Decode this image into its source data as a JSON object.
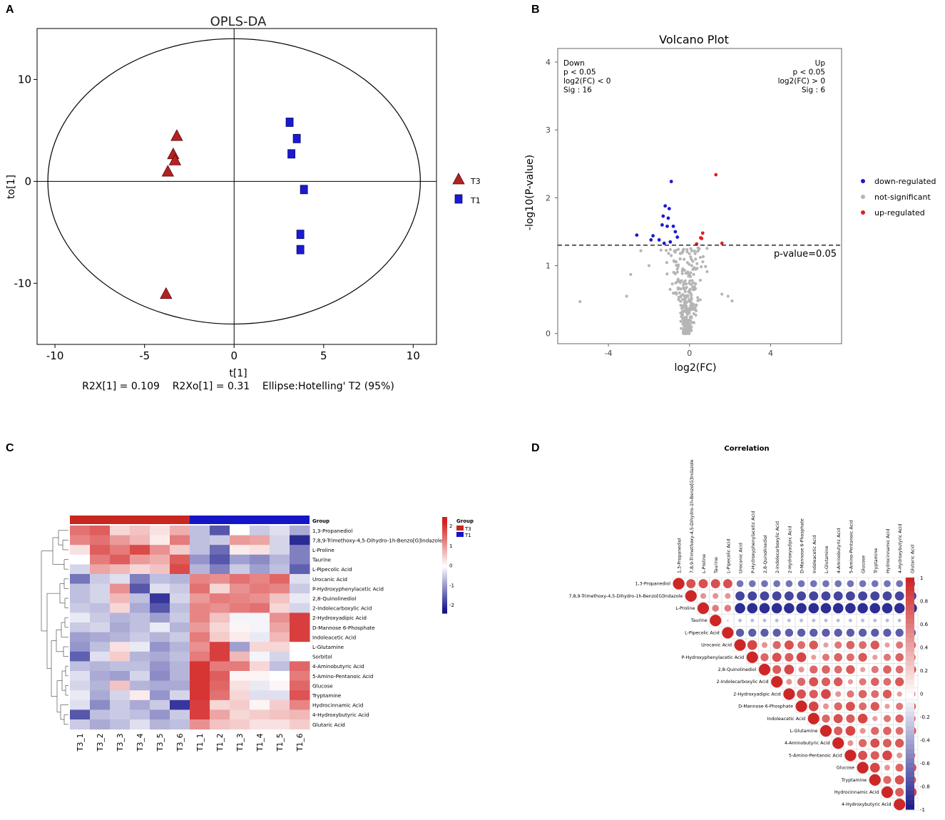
{
  "panels": {
    "A": "A",
    "B": "B",
    "C": "C",
    "D": "D"
  },
  "chart_data": [
    {
      "id": "A",
      "type": "scatter",
      "title": "OPLS-DA",
      "xlabel": "t[1]",
      "ylabel": "to[1]",
      "xlim": [
        -11,
        11.3
      ],
      "ylim": [
        -16,
        15
      ],
      "xticks": [
        -10,
        -5,
        0,
        5,
        10
      ],
      "yticks": [
        -10,
        0,
        10
      ],
      "footer": "R2X[1] = 0.109    R2Xo[1] = 0.31    Ellipse:Hotelling' T2 (95%)",
      "ellipse": {
        "rx": 10.4,
        "ry": 14.0
      },
      "colors": {
        "T3": "#b22222",
        "T1": "#1a1ad1"
      },
      "series": [
        {
          "name": "T3",
          "marker": "triangle",
          "x": [
            -3.2,
            -3.4,
            -3.3,
            -3.7,
            -3.8
          ],
          "y": [
            4.5,
            2.7,
            2.1,
            1.0,
            -11.0
          ]
        },
        {
          "name": "T1",
          "marker": "square",
          "x": [
            3.1,
            3.5,
            3.2,
            3.9,
            3.7,
            3.7
          ],
          "y": [
            5.8,
            4.2,
            2.7,
            -0.8,
            -5.2,
            -6.7
          ]
        }
      ],
      "legend": [
        "T3",
        "T1"
      ]
    },
    {
      "id": "B",
      "type": "scatter",
      "title": "Volcano Plot",
      "xlabel": "log2(FC)",
      "ylabel": "-log10(P-value)",
      "xlim": [
        -6.5,
        7.5
      ],
      "ylim": [
        -0.15,
        4.2
      ],
      "xticks": [
        -4,
        0,
        4
      ],
      "yticks": [
        0,
        1,
        2,
        3,
        4
      ],
      "threshold_y": 1.301,
      "threshold_label": "p-value=0.05",
      "annot_down": [
        "Down",
        "p < 0.05",
        "log2(FC) < 0",
        "Sig : 16"
      ],
      "annot_up": [
        "Up",
        "p < 0.05",
        "log2(FC) > 0",
        "Sig : 6"
      ],
      "legend": [
        {
          "label": "down-regulated",
          "color": "#1a1ad1"
        },
        {
          "label": "not-significant",
          "color": "#b5b5b5"
        },
        {
          "label": "up-regulated",
          "color": "#e0201c"
        }
      ],
      "down_points": [
        [
          -0.9,
          2.24
        ],
        [
          -1.2,
          1.88
        ],
        [
          -1.0,
          1.84
        ],
        [
          -1.3,
          1.73
        ],
        [
          -1.05,
          1.7
        ],
        [
          -1.35,
          1.6
        ],
        [
          -1.1,
          1.58
        ],
        [
          -0.8,
          1.58
        ],
        [
          -2.6,
          1.45
        ],
        [
          -1.8,
          1.44
        ],
        [
          -0.7,
          1.5
        ],
        [
          -0.6,
          1.42
        ],
        [
          -1.9,
          1.38
        ],
        [
          -1.5,
          1.38
        ],
        [
          -0.95,
          1.35
        ],
        [
          -1.25,
          1.33
        ]
      ],
      "up_points": [
        [
          1.3,
          2.34
        ],
        [
          0.65,
          1.48
        ],
        [
          0.55,
          1.41
        ],
        [
          0.6,
          1.4
        ],
        [
          1.6,
          1.33
        ],
        [
          0.35,
          1.32
        ]
      ]
    },
    {
      "id": "C",
      "type": "heatmap",
      "columns": [
        "T3_1",
        "T3_2",
        "T3_3",
        "T3_4",
        "T3_5",
        "T3_6",
        "T1_1",
        "T1_2",
        "T1_3",
        "T1_4",
        "T1_5",
        "T1_6"
      ],
      "group_label": "Group",
      "groups": [
        "T3",
        "T3",
        "T3",
        "T3",
        "T3",
        "T3",
        "T1",
        "T1",
        "T1",
        "T1",
        "T1",
        "T1"
      ],
      "group_colors": {
        "T3": "#c8261f",
        "T1": "#1515c8"
      },
      "legend_title": "Group",
      "legend_items": [
        "T3",
        "T1"
      ],
      "scale_ticks": [
        "2",
        "1",
        "0",
        "-1",
        "-2"
      ],
      "rows": [
        "1,3-Propanediol",
        "7,8,9-Trimethoxy-4,5-Dihydro-1h-Benzo[G]Indazole",
        "L-Proline",
        "Taurine",
        "L-Pipecolic Acid",
        "Urocanic Acid",
        "P-Hydroxyphenylacetic Acid",
        "2,8-Quinolinediol",
        "2-Indolecarboxylic Acid",
        "2-Hydroxyadipic Acid",
        "D-Mannose 6-Phosphate",
        "Indoleacetic Acid",
        "L-Glutamine",
        "Sorbitol",
        "4-Aminobutyric Acid",
        "5-Amino-Pentanoic Acid",
        "Glucose",
        "Tryptamine",
        "Hydrocinnamic Acid",
        "4-Hydroxybutyric Acid",
        "Glutaric Acid"
      ],
      "values": [
        [
          1.4,
          1.6,
          0.4,
          0.6,
          0.3,
          0.8,
          -0.6,
          -1.6,
          0.0,
          -0.5,
          -0.3,
          -0.8
        ],
        [
          1.2,
          1.4,
          1.0,
          0.7,
          0.2,
          1.3,
          -0.6,
          -0.5,
          1.0,
          0.9,
          -0.4,
          -2.0
        ],
        [
          0.3,
          1.6,
          1.3,
          1.8,
          1.1,
          0.5,
          -0.6,
          -1.4,
          0.2,
          0.3,
          -0.4,
          -1.2
        ],
        [
          0.0,
          1.3,
          1.6,
          1.0,
          0.8,
          1.6,
          -1.0,
          -1.6,
          -0.9,
          -1.1,
          -0.7,
          -1.2
        ],
        [
          -0.4,
          0.9,
          0.7,
          0.4,
          0.6,
          1.8,
          -0.7,
          -1.2,
          -0.5,
          -0.9,
          -0.6,
          -1.5
        ],
        [
          -1.3,
          -0.5,
          -0.3,
          -1.2,
          -0.6,
          -0.7,
          1.2,
          1.1,
          1.4,
          1.2,
          1.5,
          -0.3
        ],
        [
          -0.6,
          -0.4,
          1.1,
          -1.6,
          -0.3,
          -0.5,
          1.4,
          0.4,
          1.1,
          1.3,
          1.2,
          -0.5
        ],
        [
          -0.6,
          -0.4,
          0.7,
          -0.6,
          -1.9,
          -0.4,
          1.0,
          1.3,
          1.2,
          1.1,
          0.6,
          -0.2
        ],
        [
          -0.5,
          -0.6,
          0.4,
          -0.8,
          -1.6,
          -0.6,
          1.2,
          1.1,
          1.3,
          1.4,
          0.4,
          -0.4
        ],
        [
          -0.2,
          -0.5,
          -0.7,
          -0.6,
          -0.9,
          -0.5,
          1.2,
          0.6,
          -0.1,
          -0.1,
          1.1,
          1.9
        ],
        [
          -0.5,
          -0.4,
          -0.8,
          -0.6,
          -0.2,
          -0.7,
          1.0,
          0.4,
          0.1,
          -0.1,
          0.9,
          1.9
        ],
        [
          -0.9,
          -0.8,
          -0.7,
          -0.5,
          -0.7,
          -0.5,
          1.3,
          0.5,
          0.2,
          -0.2,
          0.7,
          1.9
        ],
        [
          -1.0,
          -0.6,
          0.3,
          -0.2,
          -1.0,
          -0.7,
          1.1,
          1.9,
          -0.9,
          0.4,
          0.4,
          0.0
        ],
        [
          -1.5,
          -0.3,
          0.5,
          -0.7,
          -0.8,
          -0.6,
          1.3,
          1.9,
          0.7,
          -0.1,
          -0.4,
          0.0
        ],
        [
          -0.6,
          -0.7,
          -0.6,
          -0.6,
          -1.0,
          -0.7,
          2.0,
          1.3,
          1.3,
          0.4,
          -0.6,
          1.5
        ],
        [
          -0.3,
          -0.8,
          -0.9,
          -0.4,
          -1.1,
          -0.7,
          2.0,
          1.6,
          0.1,
          0.1,
          0.0,
          1.3
        ],
        [
          -0.4,
          -0.7,
          0.6,
          -0.7,
          -0.8,
          -0.8,
          2.0,
          1.5,
          0.3,
          -0.2,
          0.1,
          1.5
        ],
        [
          -0.2,
          -0.8,
          -0.4,
          0.2,
          -1.0,
          -0.4,
          2.0,
          1.4,
          0.4,
          -0.3,
          -0.3,
          1.7
        ],
        [
          -0.3,
          -1.1,
          -0.5,
          -0.8,
          -0.5,
          -1.9,
          1.9,
          0.4,
          0.5,
          0.1,
          0.5,
          1.2
        ],
        [
          -1.6,
          -0.6,
          -0.5,
          -0.6,
          -1.0,
          -0.5,
          1.9,
          0.9,
          0.4,
          0.5,
          0.6,
          0.7
        ],
        [
          -0.5,
          -0.8,
          -0.6,
          -0.3,
          -0.7,
          -0.6,
          1.1,
          0.6,
          0.5,
          0.3,
          0.3,
          0.5
        ]
      ]
    },
    {
      "id": "D",
      "type": "heatmap",
      "title": "Correlation",
      "labels": [
        "1,3-Propanediol",
        "7,8,9-Trimethoxy-4,5-Dihydro-1h-Benzo[G]Indazole",
        "L-Proline",
        "Taurine",
        "L-Pipecolic Acid",
        "Urocanic Acid",
        "P-Hydroxyphenylacetic Acid",
        "2,8-Quinolinediol",
        "2-Indolecarboxylic Acid",
        "2-Hydroxyadipic Acid",
        "D-Mannose 6-Phosphate",
        "Indoleacetic Acid",
        "L-Glutamine",
        "4-Aminobutyric Acid",
        "5-Amino-Pentanoic Acid",
        "Glucose",
        "Tryptamine",
        "Hydrocinnamic Acid",
        "4-Hydroxybutyric Acid",
        "Glutaric Acid"
      ],
      "row_labels": [
        "1,3-Propanediol",
        "7,8,9-Trimethoxy-4,5-Dihydro-1h-Benzo[G]Indazole",
        "L-Proline",
        "Taurine",
        "L-Pipecolic Acid",
        "Urocanic Acid",
        "P-Hydroxyphenylacetic Acid",
        "2,8-Quinolinediol",
        "2-Indolecarboxylic Acid",
        "2-Hydroxyadipic Acid",
        "D-Mannose 6-Phosphate",
        "Indoleacetic Acid",
        "L-Glutamine",
        "4-Aminobutyric Acid",
        "5-Amino-Pentanoic Acid",
        "Glucose",
        "Tryptamine",
        "Hydrocinnamic Acid",
        "4-Hydroxybutyric Acid"
      ],
      "scale_ticks": [
        "1",
        "0.8",
        "0.6",
        "0.4",
        "0.2",
        "0",
        "-0.2",
        "-0.4",
        "-0.6",
        "-0.8",
        "-1"
      ],
      "group_a_end": 5,
      "within_a": [
        0.8,
        0.5,
        0.6,
        0.2
      ],
      "within_b": [
        0.75,
        0.85,
        0.5,
        0.7,
        0.8
      ],
      "cross": [
        -0.6,
        -0.8,
        -0.9,
        -0.3,
        -0.7
      ],
      "tail": [
        0.6,
        0.5,
        0.4,
        0.2,
        0.1
      ]
    }
  ]
}
